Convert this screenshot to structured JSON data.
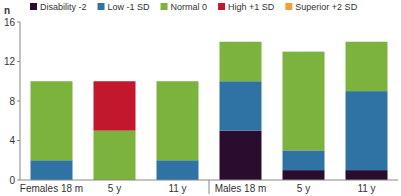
{
  "chart_data": {
    "type": "bar",
    "stacked": true,
    "legend": "top",
    "grid": false,
    "y_label": "n",
    "categories": [
      "Females 18 m",
      "5 y",
      "11 y",
      "Males 18 m",
      "5 y",
      "11 y"
    ],
    "series": [
      {
        "name": "Disability -2",
        "color": "#2a0d2e",
        "values": [
          0,
          0,
          0,
          5,
          1,
          1
        ]
      },
      {
        "name": "Low -1 SD",
        "color": "#2f72a4",
        "values": [
          2,
          0,
          2,
          5,
          2,
          8
        ]
      },
      {
        "name": "Normal 0",
        "color": "#7bb33c",
        "values": [
          8,
          5,
          8,
          4,
          10,
          5
        ]
      },
      {
        "name": "High +1 SD",
        "color": "#c2172c",
        "values": [
          0,
          5,
          0,
          0,
          0,
          0
        ]
      },
      {
        "name": "Superior +2 SD",
        "color": "#f0a23a",
        "values": [
          0,
          0,
          0,
          0,
          0,
          0
        ]
      }
    ],
    "ylim": [
      0,
      16
    ],
    "yticks": [
      0,
      4,
      8,
      12,
      16
    ]
  }
}
